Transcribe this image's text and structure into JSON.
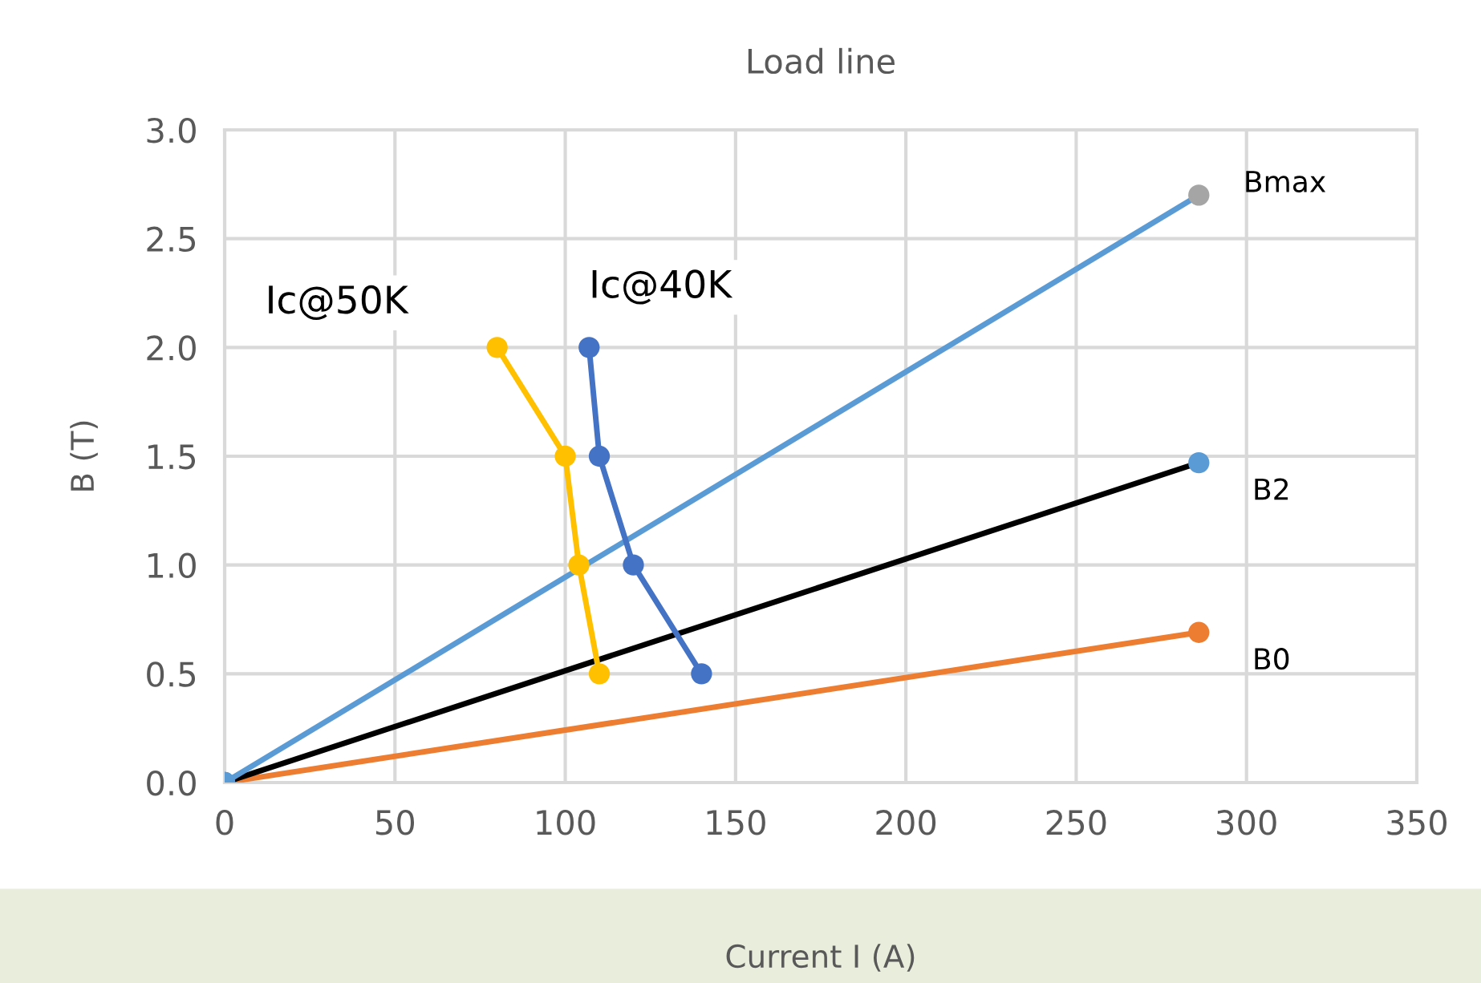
{
  "chart_data": {
    "type": "line",
    "title": "Load line",
    "xlabel": "Current I (A)",
    "ylabel": "B (T)",
    "xlim": [
      0,
      350
    ],
    "xticks": [
      0,
      50,
      100,
      150,
      200,
      250,
      300,
      350
    ],
    "ylim": [
      0,
      3.0
    ],
    "yticks": [
      {
        "value": 0,
        "label": "0.0"
      },
      {
        "value": 0.5,
        "label": "0.5"
      },
      {
        "value": 1.0,
        "label": "1.0"
      },
      {
        "value": 1.5,
        "label": "1.5"
      },
      {
        "value": 2.0,
        "label": "2.0"
      },
      {
        "value": 2.5,
        "label": "2.5"
      },
      {
        "value": 3.0,
        "label": "3.0"
      }
    ],
    "grid": true,
    "marker": "circle",
    "line_style": "solid",
    "series": [
      {
        "name": "B0",
        "color": "#ed7d31",
        "x": [
          0,
          286
        ],
        "values": [
          0,
          0.69
        ],
        "colors": [
          "#5b9bd5",
          "#ed7d31"
        ]
      },
      {
        "name": "B2",
        "color": "#000000",
        "x": [
          0,
          286
        ],
        "values": [
          0,
          1.47
        ],
        "colors": [
          "#5b9bd5",
          "#5b9bd5"
        ]
      },
      {
        "name": "Bmax",
        "color": "#5b9bd5",
        "x": [
          0,
          286
        ],
        "values": [
          0,
          2.7
        ],
        "colors": [
          "#5b9bd5",
          "#a5a5a5"
        ]
      },
      {
        "name": "Ic@50K",
        "color": "#ffc000",
        "x": [
          80,
          100,
          104,
          110
        ],
        "values": [
          2.0,
          1.5,
          1.0,
          0.5
        ]
      },
      {
        "name": "Ic@40K",
        "color": "#4472c4",
        "x": [
          107,
          110,
          120,
          140
        ],
        "values": [
          2.0,
          1.5,
          1.0,
          0.5
        ]
      }
    ]
  }
}
